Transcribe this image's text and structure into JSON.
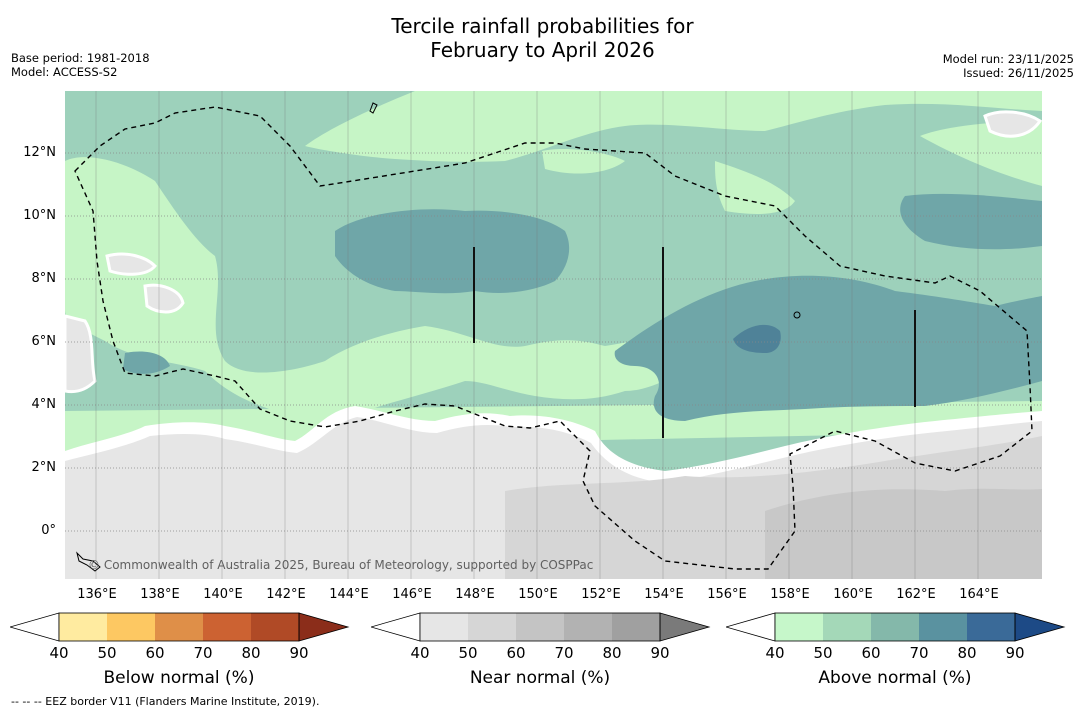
{
  "title": {
    "line1": "Tercile rainfall probabilities for",
    "line2": "February to April 2026"
  },
  "meta_left": {
    "base_period": "Base period: 1981-2018",
    "model": "Model: ACCESS-S2"
  },
  "meta_right": {
    "model_run": "Model run: 23/11/2025",
    "issued": "Issued: 26/11/2025"
  },
  "map": {
    "lat_ticks": [
      "12°N",
      "10°N",
      "8°N",
      "6°N",
      "4°N",
      "2°N",
      "0°"
    ],
    "lon_ticks": [
      "136°E",
      "138°E",
      "140°E",
      "142°E",
      "144°E",
      "146°E",
      "148°E",
      "150°E",
      "152°E",
      "154°E",
      "156°E",
      "158°E",
      "160°E",
      "162°E",
      "164°E"
    ],
    "copyright": "© Commonwealth of Australia 2025, Bureau of Meteorology, supported by COSPPac",
    "region_colors": {
      "above_40_50": "#c6f5c6",
      "above_50_60": "#9dd1bb",
      "above_60_70": "#6fa6a8",
      "above_70_80": "#4f8298",
      "near_40_50": "#e6e6e6",
      "near_50_60": "#d6d6d6",
      "near_60_70": "#c8c8c8",
      "below_normal": "#ffffff"
    }
  },
  "colorbars": [
    {
      "label": "Below normal (%)",
      "ticks": [
        "40",
        "50",
        "60",
        "70",
        "80",
        "90"
      ],
      "colors": [
        "#ffeba0",
        "#fdc862",
        "#df8f48",
        "#cc6232",
        "#b04a26",
        "#8b2d1a"
      ]
    },
    {
      "label": "Near normal (%)",
      "ticks": [
        "40",
        "50",
        "60",
        "70",
        "80",
        "90"
      ],
      "colors": [
        "#e6e6e6",
        "#d6d6d6",
        "#c4c4c4",
        "#b2b2b2",
        "#a0a0a0",
        "#7a7a7a"
      ]
    },
    {
      "label": "Above normal (%)",
      "ticks": [
        "40",
        "50",
        "60",
        "70",
        "80",
        "90"
      ],
      "colors": [
        "#c6f7ca",
        "#a4d8b8",
        "#84b8aa",
        "#5a92a0",
        "#3a6a98",
        "#1d4a86"
      ]
    }
  ],
  "footnote": "--  --  -- EEZ border V11 (Flanders Marine Institute, 2019)."
}
